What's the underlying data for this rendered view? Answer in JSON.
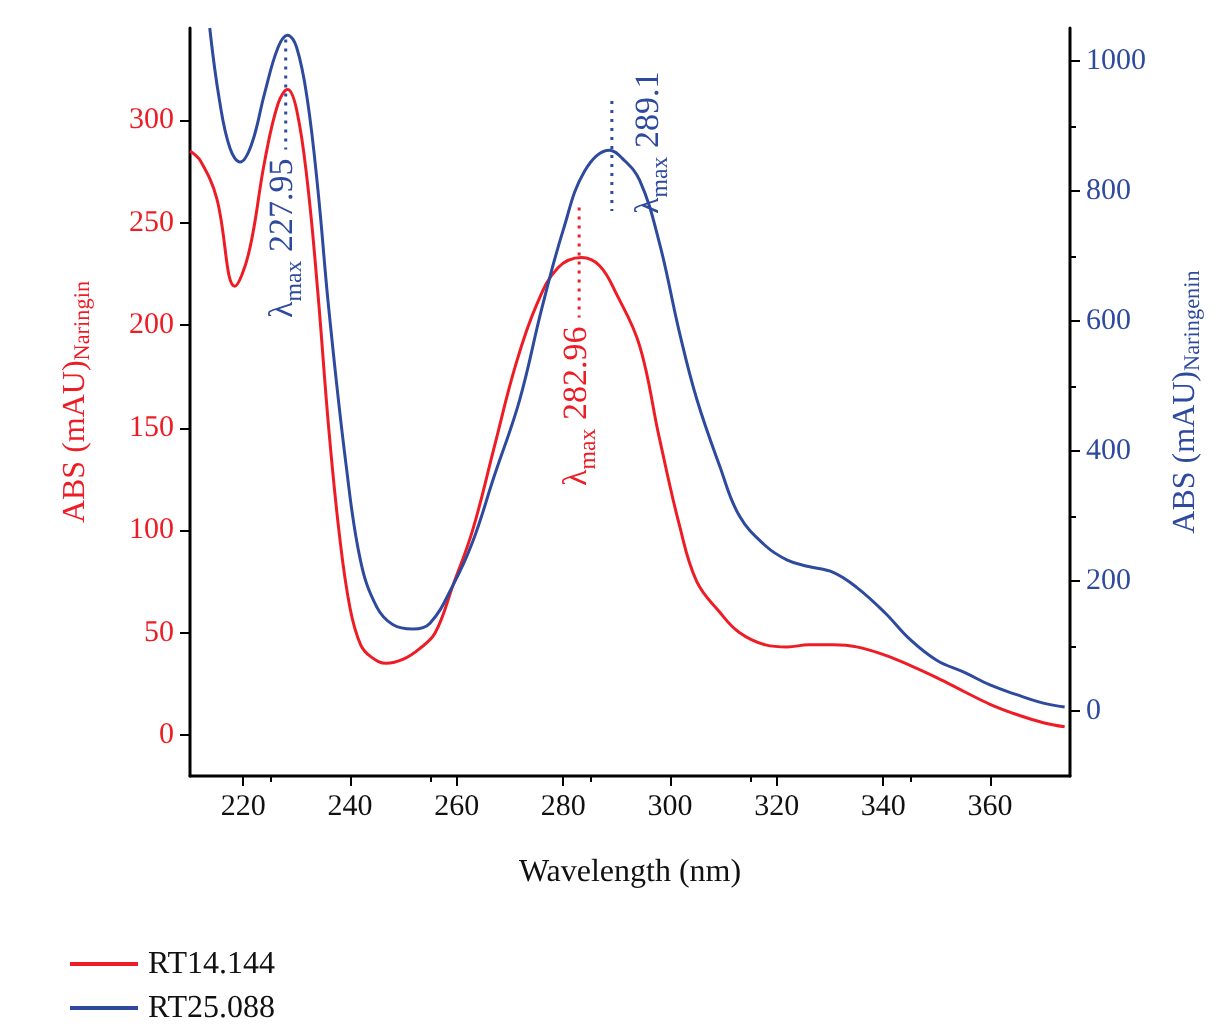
{
  "chart_data": {
    "type": "line",
    "xlabel": "Wavelength (nm)",
    "ylabel": "ABS (mAU)$_{Naringin}$",
    "y2label": "ABS (mAU)$_{Naringenin}$",
    "xlim": [
      210,
      375
    ],
    "xticks": [
      220,
      240,
      260,
      280,
      300,
      320,
      340,
      360
    ],
    "ylim": [
      -20,
      345
    ],
    "yticks": [
      0,
      50,
      100,
      150,
      200,
      250,
      300
    ],
    "y2lim": [
      -100,
      1050
    ],
    "y2ticks": [
      0,
      200,
      400,
      600,
      800,
      1000
    ],
    "grid": false,
    "legend": "bottom left",
    "marker": "none",
    "line_style": "solid",
    "series": [
      {
        "name": "RT14.144",
        "color": "#ee1c25",
        "x": [
          210,
          212,
          215,
          218.4,
          221,
          224,
          226.5,
          228.3,
          230,
          232,
          234,
          236,
          238,
          240,
          242,
          244,
          246.8,
          250,
          253,
          256,
          259.3,
          263,
          267,
          271,
          275,
          279,
          283.4,
          286.8,
          290,
          294.3,
          298,
          301.8,
          305,
          309.3,
          313,
          317.9,
          322,
          326,
          330.6,
          335,
          340.3,
          345,
          350,
          355.3,
          360,
          365,
          370,
          374
        ],
        "values": [
          285,
          280,
          262,
          219,
          235,
          280,
          308,
          315,
          305,
          270,
          215,
          150,
          98,
          62,
          44,
          38,
          35,
          37,
          42,
          50,
          73,
          100,
          140,
          180,
          210,
          228,
          233,
          229,
          215,
          190,
          145,
          102,
          75,
          60,
          50,
          44,
          43,
          44,
          44,
          43,
          39,
          34,
          28,
          21,
          15,
          10,
          6,
          4
        ]
      },
      {
        "name": "RT25.088",
        "color": "#2e4a9e",
        "axis": "y2",
        "x": [
          213.7,
          215.5,
          217.5,
          219.4,
          221.5,
          224,
          226.5,
          228.3,
          230,
          232,
          234,
          236,
          239.3,
          242,
          245,
          248,
          251.8,
          255,
          259.3,
          263,
          267,
          271.8,
          276,
          280,
          284,
          288.7,
          291,
          294.3,
          298,
          301.8,
          305,
          309.3,
          313,
          317.9,
          322,
          326,
          330.6,
          335,
          340.3,
          345,
          350,
          355.3,
          360,
          365,
          370,
          374
        ],
        "values": [
          1050,
          940,
          865,
          844,
          870,
          950,
          1020,
          1039,
          1020,
          940,
          800,
          620,
          376,
          230,
          160,
          133,
          126,
          135,
          193,
          260,
          360,
          478,
          620,
          740,
          830,
          862,
          850,
          816,
          720,
          581,
          480,
          377,
          300,
          254,
          232,
          222,
          213,
          190,
          151,
          110,
          78,
          59,
          40,
          25,
          12,
          6
        ]
      }
    ],
    "annotations": [
      {
        "text": "λ$_{max}$ 227.95",
        "x": 227.95,
        "y": 315
      },
      {
        "text": "λ$_{max}$ 282.96",
        "x": 282.96,
        "y": 233
      },
      {
        "text": "λ$_{max}$ 289.1",
        "x": 289.1,
        "y": 285
      }
    ]
  }
}
